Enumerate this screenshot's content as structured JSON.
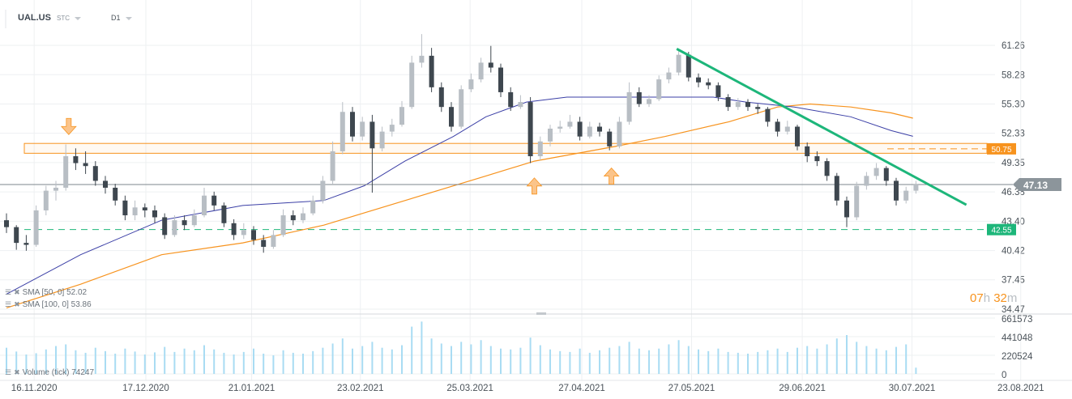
{
  "header": {
    "symbol": "UAL.US",
    "type": "STC",
    "interval": "D1"
  },
  "legend": {
    "sma50": "SMA [50, 0] 52.02",
    "sma100": "SMA [100, 0] 53.86",
    "volume": "Volume (tick) 74247"
  },
  "timer": {
    "hours": "07",
    "h": "h",
    "minutes": "32",
    "m": "m"
  },
  "colors": {
    "bull": "#b8bec4",
    "bear": "#3e474f",
    "sma50": "#3b3fa6",
    "sma100": "#f7931e",
    "trend": "#1db67a",
    "resistance": "#f7931e",
    "support": "#1db67a",
    "volume": "#a9dcf3",
    "price_tag": "#8c959b"
  },
  "chart_data": {
    "type": "candlestick",
    "price_ticks": [
      "61.26",
      "58.28",
      "55.30",
      "52.33",
      "49.35",
      "46.38",
      "43.40",
      "40.42",
      "37.45",
      "34.47"
    ],
    "ylim": [
      34.47,
      61.26
    ],
    "volume_ticks": [
      "661573",
      "441048",
      "220524",
      "0"
    ],
    "volume_lim": [
      0,
      661573
    ],
    "x_labels": [
      {
        "text": "16.11.2020",
        "candle": 2.8
      },
      {
        "text": "17.12.2020",
        "candle": 14.1
      },
      {
        "text": "21.01.2021",
        "candle": 24.8
      },
      {
        "text": "23.02.2021",
        "candle": 35.8
      },
      {
        "text": "25.03.2021",
        "candle": 46.9
      },
      {
        "text": "27.04.2021",
        "candle": 58.2
      },
      {
        "text": "27.05.2021",
        "candle": 69.3
      },
      {
        "text": "29.06.2021",
        "candle": 80.5
      },
      {
        "text": "30.07.2021",
        "candle": 91.6
      },
      {
        "text": "23.08.2021",
        "candle": 102.6
      }
    ],
    "ohlc": [
      [
        43.5,
        44.2,
        42.2,
        42.8
      ],
      [
        42.8,
        43.0,
        40.5,
        41.2
      ],
      [
        41.2,
        42.0,
        40.4,
        41.0
      ],
      [
        41.0,
        45.0,
        40.8,
        44.5
      ],
      [
        44.5,
        47.0,
        44.0,
        46.5
      ],
      [
        46.5,
        47.5,
        45.5,
        46.8
      ],
      [
        46.8,
        51.2,
        46.5,
        50.0
      ],
      [
        50.0,
        50.8,
        48.6,
        49.3
      ],
      [
        49.3,
        50.5,
        48.2,
        49.0
      ],
      [
        49.0,
        49.5,
        47.0,
        47.5
      ],
      [
        47.5,
        48.0,
        46.2,
        46.8
      ],
      [
        46.8,
        47.2,
        45.0,
        45.5
      ],
      [
        45.5,
        46.0,
        43.5,
        44.0
      ],
      [
        44.0,
        45.5,
        43.5,
        44.8
      ],
      [
        44.8,
        45.2,
        43.8,
        44.5
      ],
      [
        44.5,
        45.0,
        43.2,
        43.8
      ],
      [
        43.8,
        44.2,
        41.6,
        42.0
      ],
      [
        42.0,
        44.0,
        41.8,
        43.5
      ],
      [
        43.5,
        44.0,
        42.5,
        43.0
      ],
      [
        43.0,
        44.6,
        42.8,
        44.0
      ],
      [
        44.0,
        46.8,
        43.8,
        46.0
      ],
      [
        46.0,
        46.4,
        44.5,
        45.0
      ],
      [
        45.0,
        45.3,
        42.8,
        43.2
      ],
      [
        43.2,
        43.6,
        41.5,
        42.0
      ],
      [
        42.0,
        43.2,
        41.6,
        42.5
      ],
      [
        42.5,
        42.9,
        41.0,
        41.5
      ],
      [
        41.5,
        42.0,
        40.2,
        40.8
      ],
      [
        40.8,
        42.5,
        40.6,
        42.0
      ],
      [
        42.0,
        44.6,
        41.8,
        44.0
      ],
      [
        44.0,
        44.5,
        43.0,
        43.5
      ],
      [
        43.5,
        44.8,
        43.2,
        44.2
      ],
      [
        44.2,
        46.0,
        44.0,
        45.5
      ],
      [
        45.5,
        48.0,
        45.2,
        47.5
      ],
      [
        47.5,
        51.5,
        47.2,
        50.5
      ],
      [
        50.5,
        55.5,
        50.2,
        54.5
      ],
      [
        54.5,
        55.0,
        51.5,
        52.0
      ],
      [
        52.0,
        54.0,
        51.6,
        53.5
      ],
      [
        53.5,
        54.2,
        46.3,
        50.8
      ],
      [
        50.8,
        53.0,
        50.5,
        52.5
      ],
      [
        52.5,
        53.8,
        52.0,
        53.2
      ],
      [
        53.2,
        55.6,
        53.0,
        55.0
      ],
      [
        55.0,
        60.2,
        54.8,
        59.5
      ],
      [
        59.5,
        62.4,
        59.0,
        60.2
      ],
      [
        60.2,
        61.0,
        56.5,
        57.0
      ],
      [
        57.0,
        57.5,
        54.5,
        55.0
      ],
      [
        55.0,
        55.5,
        52.5,
        53.0
      ],
      [
        53.0,
        57.2,
        52.8,
        56.8
      ],
      [
        56.8,
        58.4,
        56.5,
        57.8
      ],
      [
        57.8,
        60.0,
        57.5,
        59.5
      ],
      [
        59.5,
        61.2,
        58.5,
        59.0
      ],
      [
        59.0,
        59.4,
        56.0,
        56.5
      ],
      [
        56.5,
        57.0,
        54.6,
        55.0
      ],
      [
        55.0,
        56.2,
        54.8,
        55.5
      ],
      [
        55.5,
        56.0,
        49.3,
        50.0
      ],
      [
        50.0,
        52.0,
        49.6,
        51.5
      ],
      [
        51.5,
        53.2,
        51.0,
        52.8
      ],
      [
        52.8,
        53.6,
        52.4,
        53.0
      ],
      [
        53.0,
        54.2,
        52.8,
        53.5
      ],
      [
        53.5,
        54.0,
        51.6,
        52.0
      ],
      [
        52.0,
        53.5,
        51.8,
        53.0
      ],
      [
        53.0,
        53.4,
        52.0,
        52.5
      ],
      [
        52.5,
        52.8,
        50.6,
        51.0
      ],
      [
        51.0,
        54.0,
        50.8,
        53.5
      ],
      [
        53.5,
        57.5,
        53.2,
        56.5
      ],
      [
        56.5,
        57.0,
        55.0,
        55.3
      ],
      [
        55.3,
        56.2,
        55.0,
        55.8
      ],
      [
        55.8,
        58.2,
        55.6,
        57.8
      ],
      [
        57.8,
        59.0,
        57.4,
        58.5
      ],
      [
        58.5,
        60.8,
        58.2,
        60.3
      ],
      [
        60.3,
        60.6,
        57.6,
        58.0
      ],
      [
        58.0,
        58.4,
        57.0,
        57.5
      ],
      [
        57.5,
        57.9,
        56.8,
        57.2
      ],
      [
        57.2,
        57.5,
        55.6,
        56.0
      ],
      [
        56.0,
        56.3,
        54.6,
        55.0
      ],
      [
        55.0,
        55.9,
        54.7,
        55.5
      ],
      [
        55.5,
        55.8,
        54.6,
        55.0
      ],
      [
        55.0,
        55.3,
        54.3,
        54.8
      ],
      [
        54.8,
        55.0,
        53.0,
        53.5
      ],
      [
        53.5,
        53.8,
        52.0,
        52.5
      ],
      [
        52.5,
        53.6,
        52.2,
        53.0
      ],
      [
        53.0,
        53.2,
        50.6,
        51.0
      ],
      [
        51.0,
        51.4,
        49.4,
        50.0
      ],
      [
        50.0,
        50.5,
        49.0,
        49.5
      ],
      [
        49.5,
        49.8,
        47.5,
        48.0
      ],
      [
        48.0,
        48.3,
        45.0,
        45.5
      ],
      [
        45.5,
        45.9,
        42.8,
        43.8
      ],
      [
        43.8,
        47.4,
        43.5,
        47.0
      ],
      [
        47.0,
        48.4,
        46.6,
        48.0
      ],
      [
        48.0,
        49.3,
        47.6,
        48.8
      ],
      [
        48.8,
        49.0,
        47.0,
        47.5
      ],
      [
        47.5,
        47.8,
        45.0,
        45.5
      ],
      [
        45.5,
        46.9,
        45.2,
        46.5
      ],
      [
        46.5,
        47.5,
        46.2,
        47.13
      ]
    ],
    "volume": [
      310000,
      265000,
      230000,
      245000,
      290000,
      330000,
      350000,
      280000,
      250000,
      310000,
      270000,
      240000,
      300000,
      265000,
      230000,
      255000,
      320000,
      260000,
      300000,
      280000,
      340000,
      290000,
      250000,
      230000,
      260000,
      300000,
      240000,
      220000,
      280000,
      250000,
      240000,
      270000,
      310000,
      360000,
      420000,
      300000,
      330000,
      380000,
      310000,
      290000,
      340000,
      560000,
      620000,
      420000,
      360000,
      330000,
      380000,
      350000,
      400000,
      330000,
      300000,
      290000,
      310000,
      430000,
      340000,
      290000,
      270000,
      260000,
      300000,
      250000,
      280000,
      310000,
      330000,
      380000,
      300000,
      280000,
      300000,
      350000,
      400000,
      330000,
      290000,
      270000,
      300000,
      260000,
      250000,
      240000,
      260000,
      280000,
      300000,
      260000,
      310000,
      330000,
      300000,
      350000,
      420000,
      460000,
      380000,
      330000,
      300000,
      280000,
      320000,
      350000,
      74247
    ],
    "sma50": [
      [
        0,
        36.0
      ],
      [
        7.5,
        40.0
      ],
      [
        15.7,
        43.5
      ],
      [
        23.9,
        45.0
      ],
      [
        32.1,
        45.5
      ],
      [
        36.2,
        47.0
      ],
      [
        40.3,
        49.5
      ],
      [
        45.2,
        52.0
      ],
      [
        48.5,
        54.0
      ],
      [
        52.6,
        55.5
      ],
      [
        56.7,
        56.0
      ],
      [
        61.6,
        56.0
      ],
      [
        66.6,
        56.0
      ],
      [
        71.5,
        56.0
      ],
      [
        74.8,
        55.5
      ],
      [
        79.7,
        55.0
      ],
      [
        85.4,
        54.0
      ],
      [
        89.5,
        52.6
      ],
      [
        91.7,
        52.02
      ]
    ],
    "sma100": [
      [
        0,
        34.6
      ],
      [
        7.5,
        37.0
      ],
      [
        15.7,
        40.0
      ],
      [
        23.9,
        41.2
      ],
      [
        32.1,
        43.0
      ],
      [
        40.3,
        45.5
      ],
      [
        48.5,
        48.0
      ],
      [
        53.4,
        49.5
      ],
      [
        61.6,
        51.0
      ],
      [
        66.6,
        52.0
      ],
      [
        73.1,
        53.5
      ],
      [
        78.0,
        55.0
      ],
      [
        81.3,
        55.3
      ],
      [
        85.4,
        55.0
      ],
      [
        89.5,
        54.4
      ],
      [
        91.7,
        53.86
      ]
    ],
    "resistance_zone": {
      "low": 50.3,
      "high": 51.3,
      "label": "50.75",
      "level": 50.75
    },
    "support_level": {
      "level": 42.55,
      "label": "42.55"
    },
    "current_price": {
      "level": 47.13,
      "label": "47.13"
    },
    "trendline": {
      "from": [
        67.8,
        60.9
      ],
      "to": [
        97.1,
        45.07
      ]
    },
    "arrows": [
      {
        "dir": "down",
        "candle": 6.3,
        "price": 52.2
      },
      {
        "dir": "up",
        "candle": 53.4,
        "price": 47.8
      },
      {
        "dir": "up",
        "candle": 61.2,
        "price": 48.8
      }
    ]
  }
}
